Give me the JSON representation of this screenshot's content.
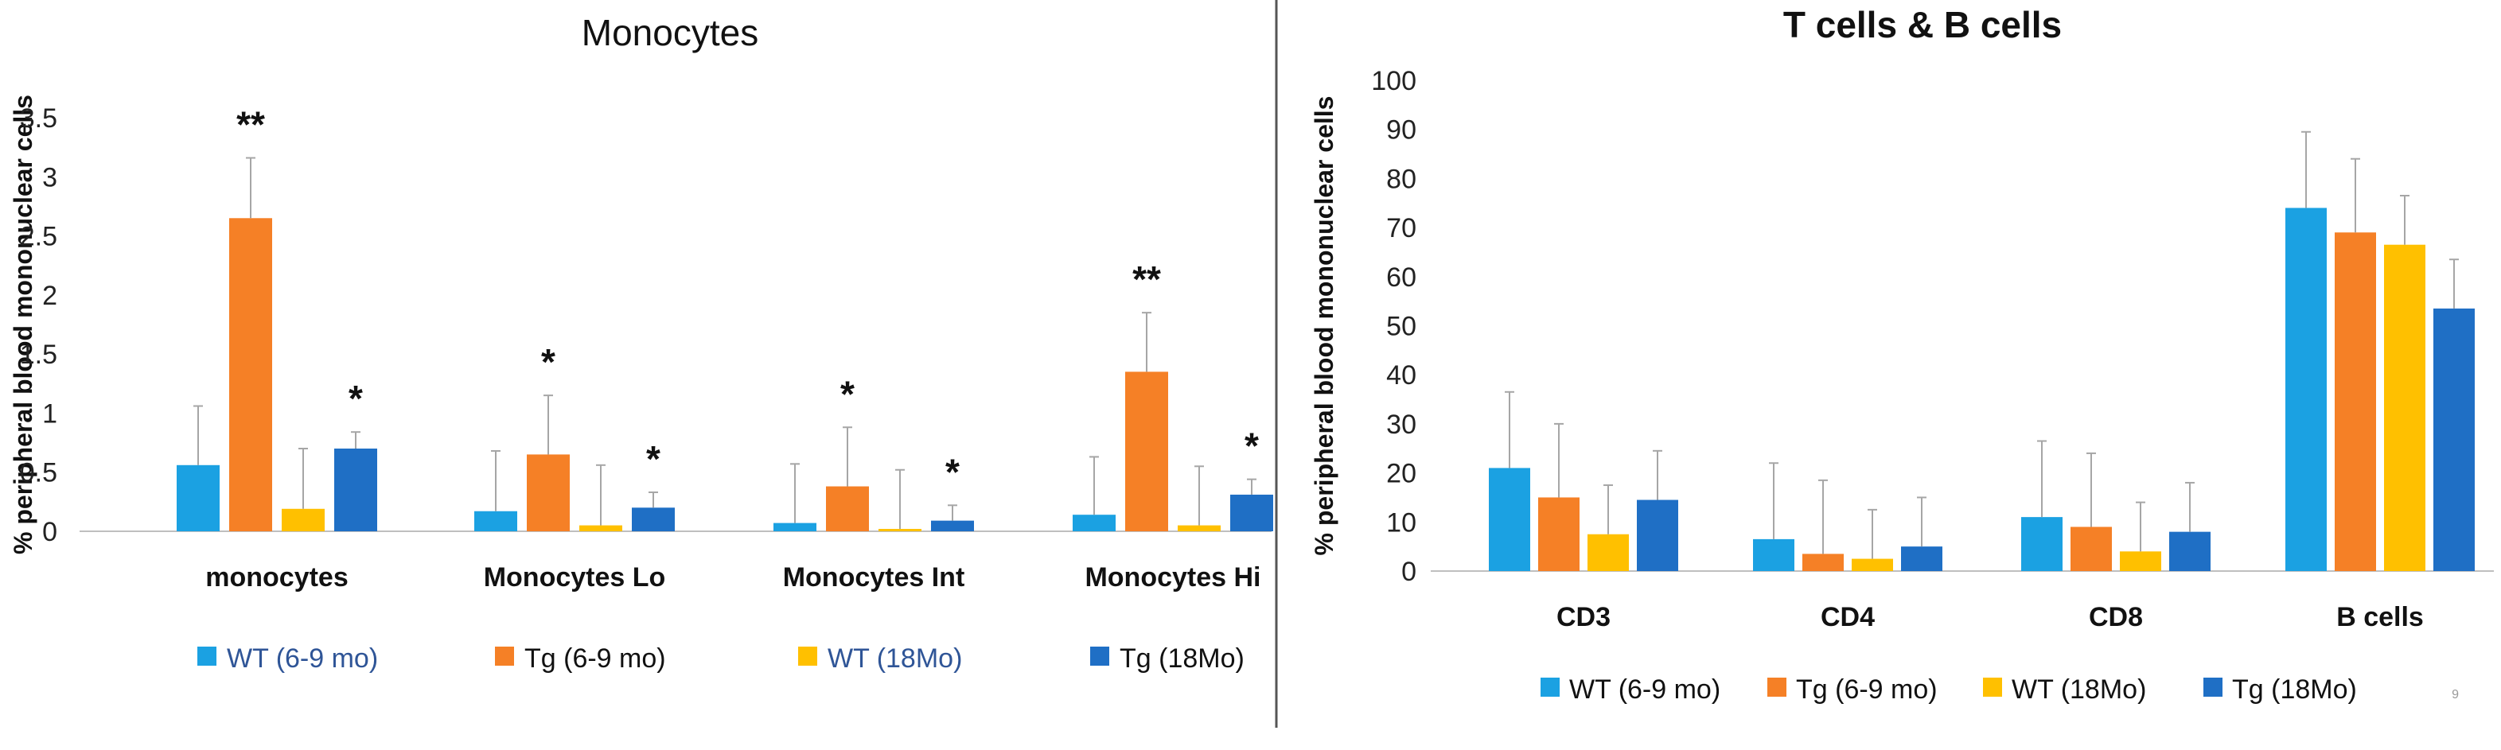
{
  "chart_data": [
    {
      "type": "bar",
      "title": "Monocytes",
      "xlabel": "",
      "ylabel": "% peripheral blood mononuclear cells",
      "ylim": [
        0,
        3.5
      ],
      "yticks": [
        "0",
        "0.5",
        "1",
        "1.5",
        "2",
        "2.5",
        "3",
        "3.5"
      ],
      "categories": [
        "monocytes",
        "Monocytes Lo",
        "Monocytes Int",
        "Monocytes Hi"
      ],
      "legend_position": "bottom",
      "series": [
        {
          "name": "WT (6-9 mo)",
          "color": "#1ba1e2",
          "values": [
            0.56,
            0.17,
            0.07,
            0.14
          ],
          "errors": [
            0.5,
            0.51,
            0.5,
            0.49
          ]
        },
        {
          "name": "Tg (6-9 mo)",
          "color": "#f58026",
          "values": [
            2.65,
            0.65,
            0.38,
            1.35
          ],
          "errors": [
            0.51,
            0.5,
            0.5,
            0.5
          ]
        },
        {
          "name": "WT (18Mo)",
          "color": "#ffc000",
          "values": [
            0.19,
            0.05,
            0.02,
            0.05
          ],
          "errors": [
            0.51,
            0.51,
            0.5,
            0.5
          ]
        },
        {
          "name": "Tg (18Mo)",
          "color": "#1f6fc5",
          "values": [
            0.7,
            0.2,
            0.09,
            0.31
          ],
          "errors": [
            0.14,
            0.13,
            0.13,
            0.13
          ]
        }
      ],
      "annotations": [
        {
          "category": "monocytes",
          "series": "Tg (6-9 mo)",
          "text": "**"
        },
        {
          "category": "monocytes",
          "series": "Tg (18Mo)",
          "text": "*"
        },
        {
          "category": "Monocytes Lo",
          "series": "Tg (6-9 mo)",
          "text": "*"
        },
        {
          "category": "Monocytes Lo",
          "series": "Tg (18Mo)",
          "text": "*"
        },
        {
          "category": "Monocytes Int",
          "series": "Tg (6-9 mo)",
          "text": "*"
        },
        {
          "category": "Monocytes Int",
          "series": "Tg (18Mo)",
          "text": "*"
        },
        {
          "category": "Monocytes Hi",
          "series": "Tg (6-9 mo)",
          "text": "**"
        },
        {
          "category": "Monocytes Hi",
          "series": "Tg (18Mo)",
          "text": "*"
        }
      ]
    },
    {
      "type": "bar",
      "title": "T cells & B cells",
      "xlabel": "",
      "ylabel": "% peripheral blood mononuclear cells",
      "ylim": [
        0,
        100
      ],
      "yticks": [
        "0",
        "10",
        "20",
        "30",
        "40",
        "50",
        "60",
        "70",
        "80",
        "90",
        "100"
      ],
      "categories": [
        "CD3",
        "CD4",
        "CD8",
        "B cells"
      ],
      "legend_position": "bottom",
      "series": [
        {
          "name": "WT (6-9 mo)",
          "color": "#1ba1e2",
          "values": [
            21,
            6.5,
            11,
            74
          ],
          "errors": [
            15.5,
            15.5,
            15.5,
            15.5
          ]
        },
        {
          "name": "Tg (6-9 mo)",
          "color": "#f58026",
          "values": [
            15,
            3.5,
            9,
            69
          ],
          "errors": [
            15,
            15,
            15,
            15
          ]
        },
        {
          "name": "WT (18Mo)",
          "color": "#ffc000",
          "values": [
            7.5,
            2.5,
            4,
            66.5
          ],
          "errors": [
            10,
            10,
            10,
            10
          ]
        },
        {
          "name": "Tg (18Mo)",
          "color": "#1f6fc5",
          "values": [
            14.5,
            5,
            8,
            53.5
          ],
          "errors": [
            10,
            10,
            10,
            10
          ]
        }
      ]
    }
  ],
  "page_number": "9"
}
